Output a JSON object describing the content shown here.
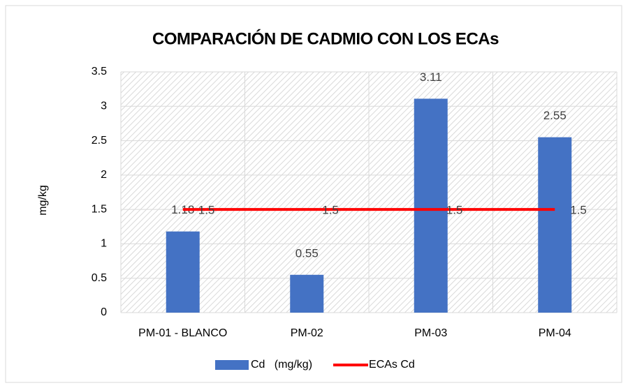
{
  "chart_data": {
    "type": "bar",
    "title": "COMPARACIÓN DE CADMIO CON LOS ECAs",
    "y_label": "mg/kg",
    "categories": [
      "PM-01 - BLANCO",
      "PM-02",
      "PM-03",
      "PM-04"
    ],
    "series": [
      {
        "name": "Cd   (mg/kg)",
        "color": "#4472c4",
        "type": "bar",
        "values": [
          1.18,
          0.55,
          3.11,
          2.55
        ]
      },
      {
        "name": "ECAs Cd",
        "color": "#ff0000",
        "type": "line",
        "values": [
          1.5,
          1.5,
          1.5,
          1.5
        ]
      }
    ],
    "ylim": [
      0,
      3.5
    ],
    "yticks": [
      0,
      0.5,
      1,
      1.5,
      2,
      2.5,
      3,
      3.5
    ],
    "grid": true,
    "legend": "bottom"
  }
}
